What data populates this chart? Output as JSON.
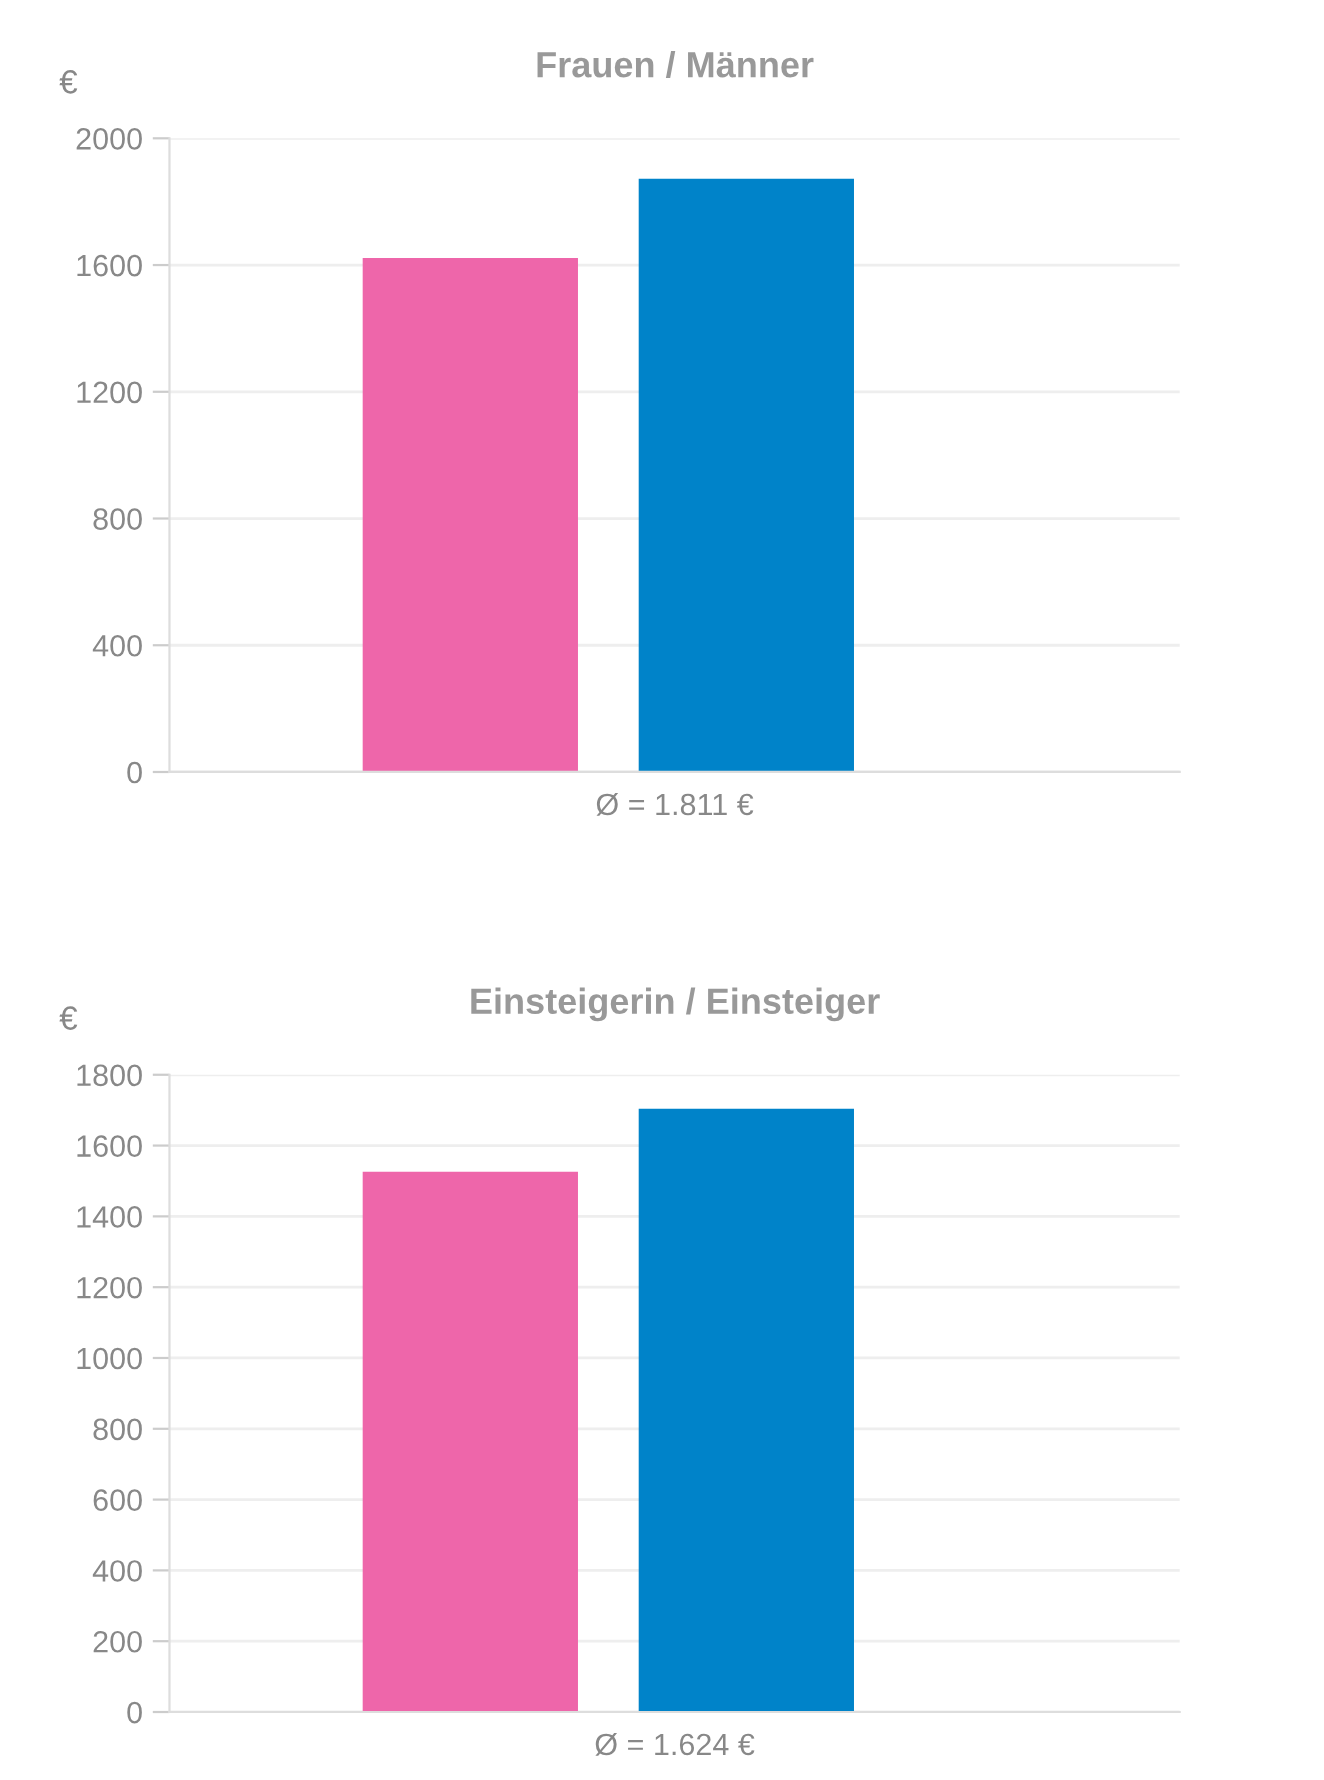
{
  "chart_data": [
    {
      "type": "bar",
      "title": "Frauen / Männer",
      "ylabel": "€",
      "xlabel": "Ø = 1.811 €",
      "categories": [
        null,
        null
      ],
      "values": [
        1622,
        1872
      ],
      "colors": [
        "#ee66aa",
        "#0083c9"
      ],
      "ylim": [
        0,
        2000
      ],
      "yticks": [
        0,
        400,
        800,
        1200,
        1600,
        2000
      ],
      "grid": "y"
    },
    {
      "type": "bar",
      "title": "Einsteigerin / Einsteiger",
      "ylabel": "€",
      "xlabel": "Ø = 1.624 €",
      "categories": [
        null,
        null
      ],
      "values": [
        1526,
        1704
      ],
      "colors": [
        "#ee66aa",
        "#0083c9"
      ],
      "ylim": [
        0,
        1800
      ],
      "yticks": [
        0,
        200,
        400,
        600,
        800,
        1000,
        1200,
        1400,
        1600,
        1800
      ],
      "grid": "y"
    }
  ]
}
